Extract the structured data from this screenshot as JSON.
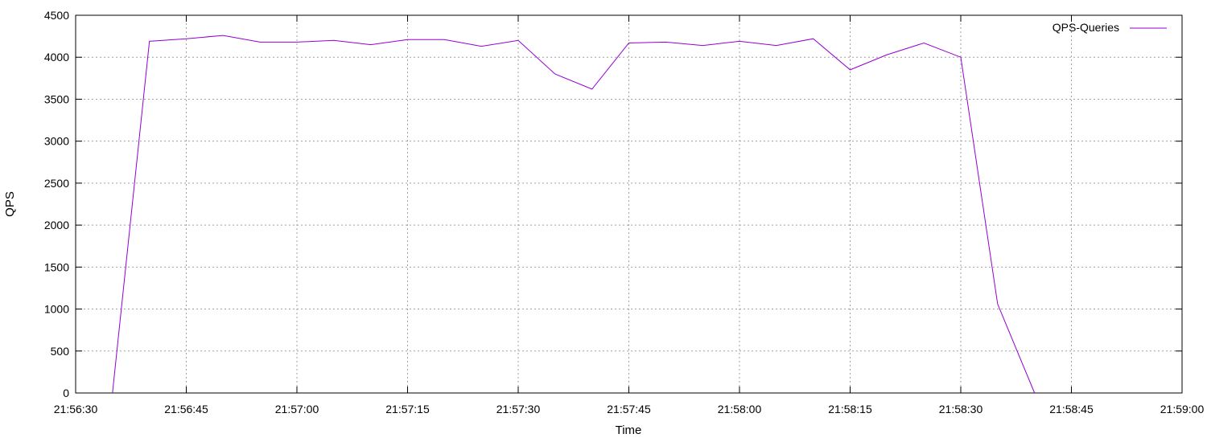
{
  "chart_data": {
    "type": "line",
    "xlabel": "Time",
    "ylabel": "QPS",
    "xlim": [
      "21:56:30",
      "21:59:00"
    ],
    "ylim": [
      0,
      4500
    ],
    "x_ticks": [
      "21:56:30",
      "21:56:45",
      "21:57:00",
      "21:57:15",
      "21:57:30",
      "21:57:45",
      "21:58:00",
      "21:58:15",
      "21:58:30",
      "21:58:45",
      "21:59:00"
    ],
    "y_ticks": [
      0,
      500,
      1000,
      1500,
      2000,
      2500,
      3000,
      3500,
      4000,
      4500
    ],
    "grid": true,
    "legend": "top-right",
    "series": [
      {
        "name": "QPS-Queries",
        "color": "#9400d3",
        "x": [
          "21:56:35",
          "21:56:40",
          "21:56:45",
          "21:56:50",
          "21:56:55",
          "21:57:00",
          "21:57:05",
          "21:57:10",
          "21:57:15",
          "21:57:20",
          "21:57:25",
          "21:57:30",
          "21:57:35",
          "21:57:40",
          "21:57:45",
          "21:57:50",
          "21:57:55",
          "21:58:00",
          "21:58:05",
          "21:58:10",
          "21:58:15",
          "21:58:20",
          "21:58:25",
          "21:58:30",
          "21:58:35",
          "21:58:40"
        ],
        "values": [
          0,
          4190,
          4220,
          4260,
          4180,
          4180,
          4200,
          4150,
          4210,
          4210,
          4130,
          4200,
          3800,
          3620,
          4170,
          4180,
          4140,
          4190,
          4140,
          4220,
          3850,
          4030,
          4170,
          4000,
          1060,
          0
        ]
      }
    ]
  }
}
